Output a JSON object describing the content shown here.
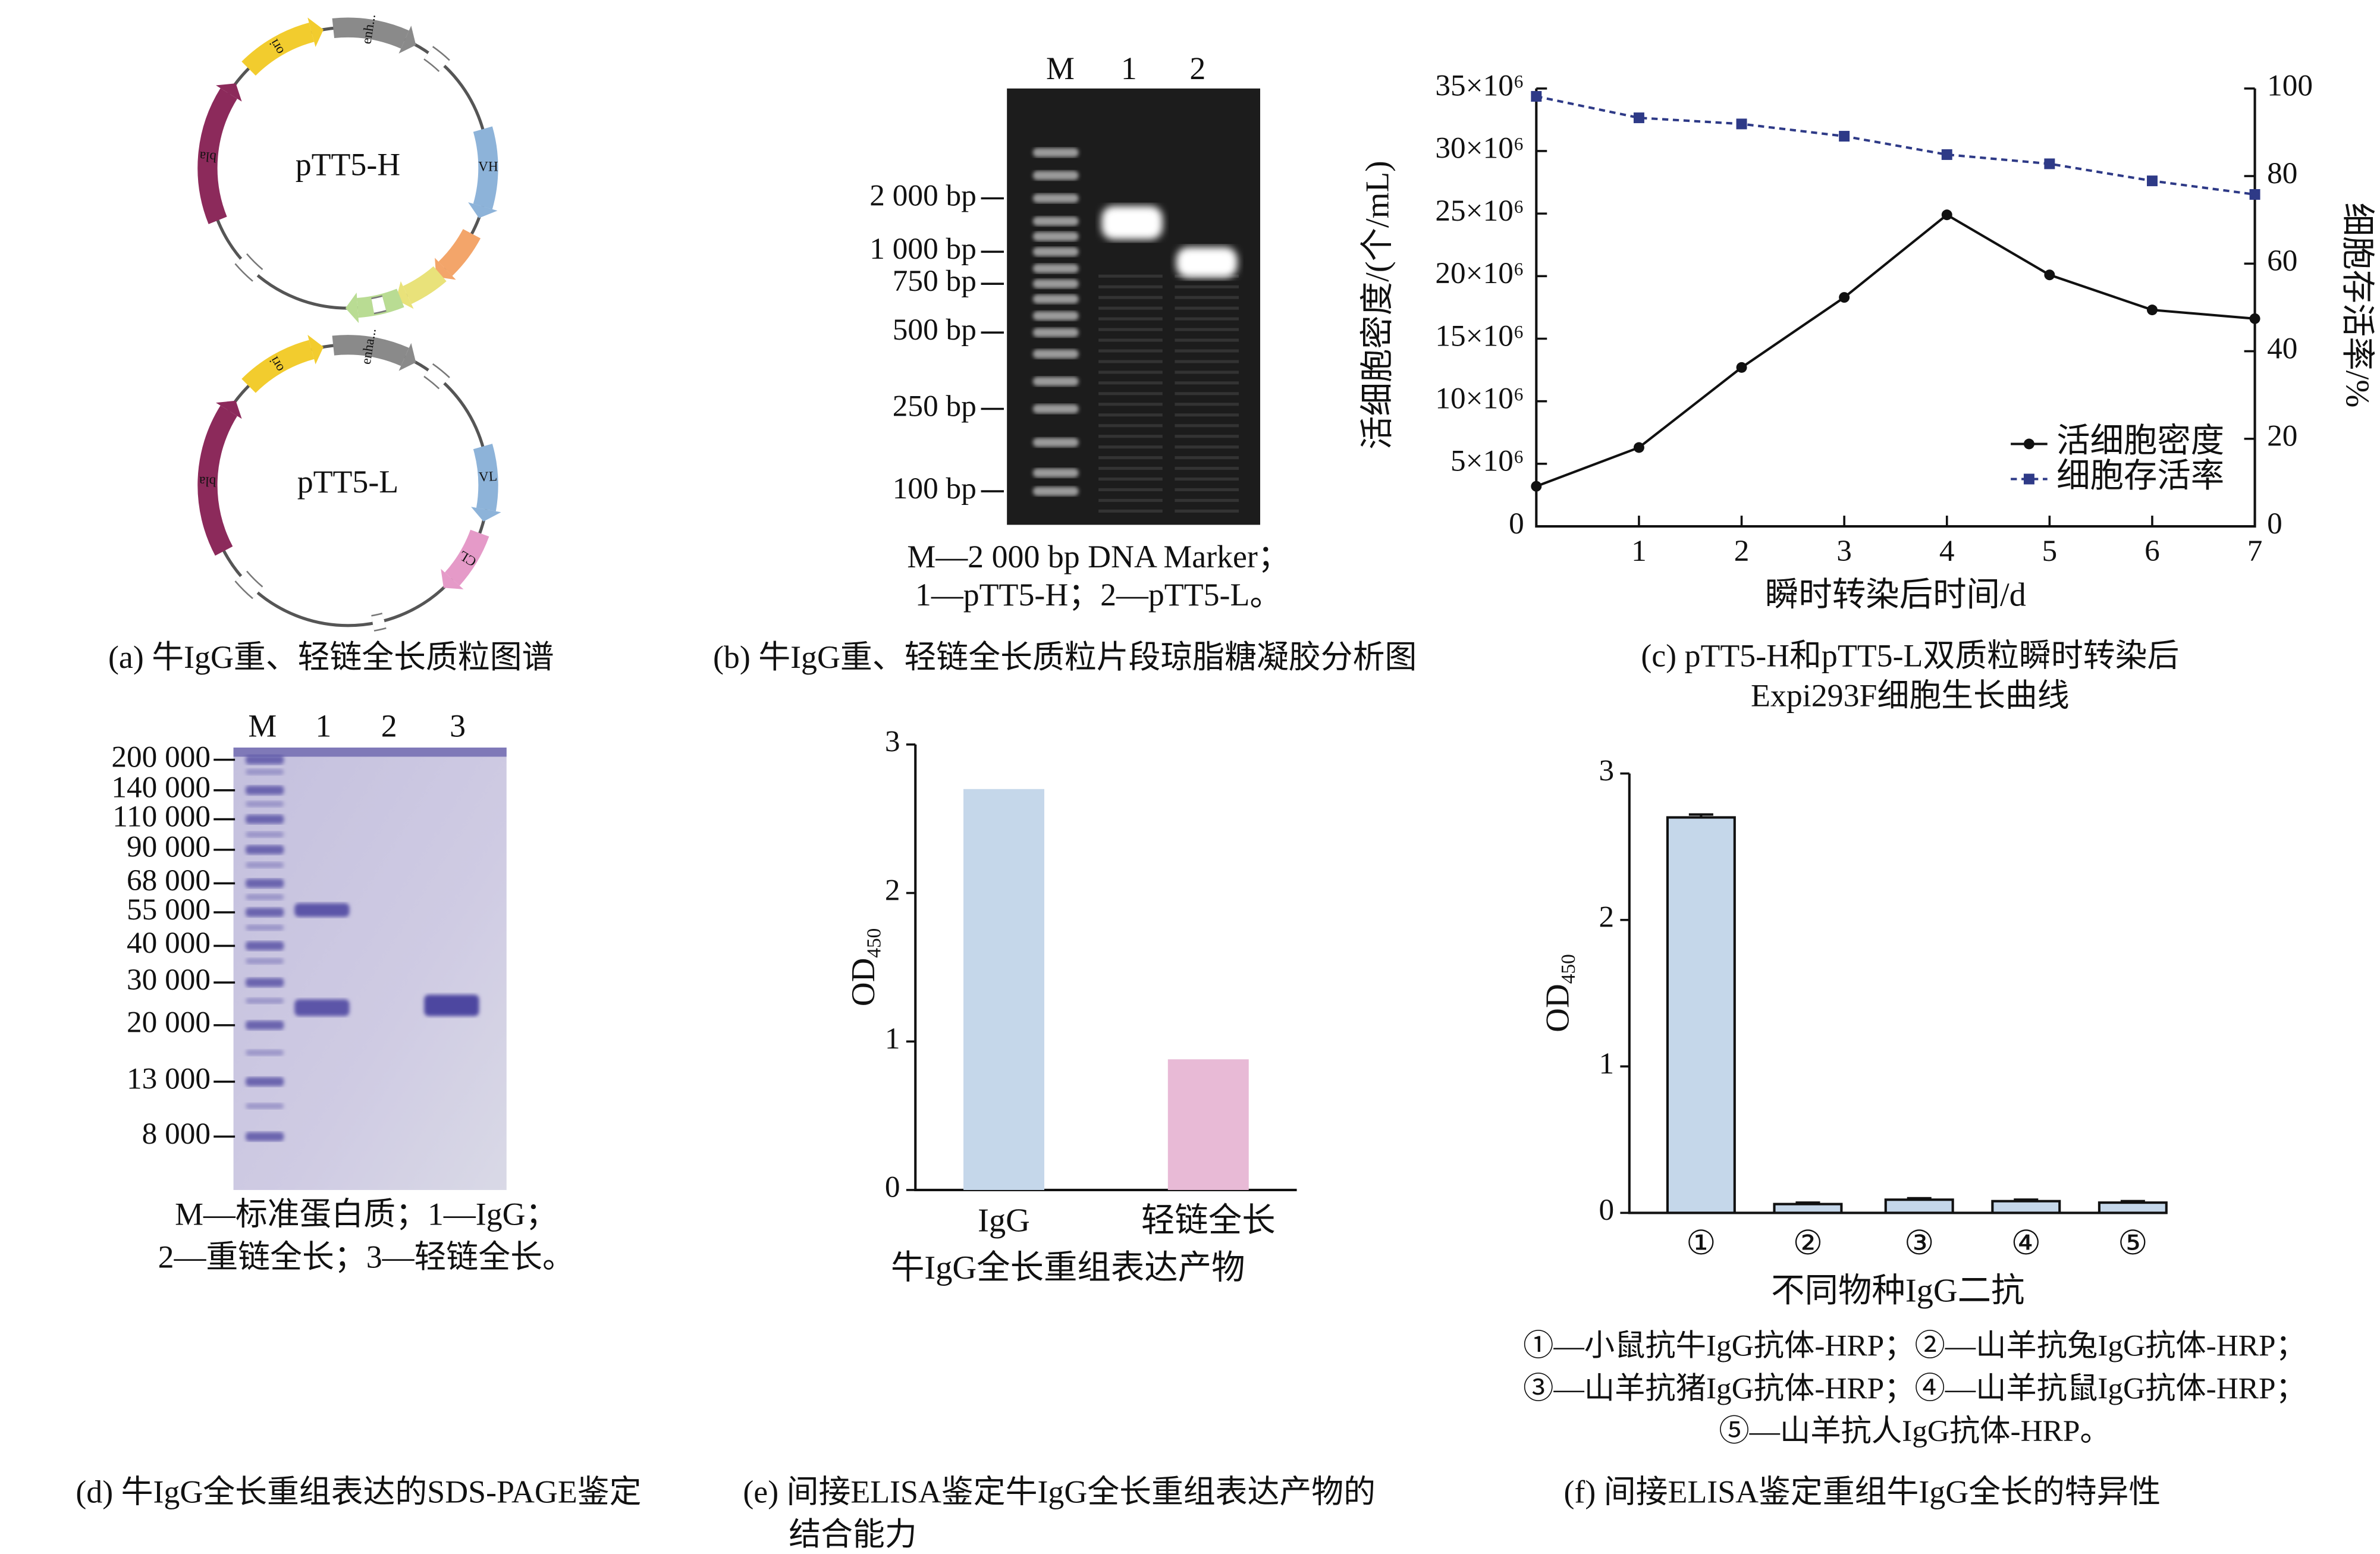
{
  "plasmids": {
    "caption": "(a) 牛IgG重、轻链全长质粒图谱",
    "maps": [
      {
        "name": "pTT5-H",
        "features": [
          "ori",
          "enh...",
          "VH",
          "bla"
        ]
      },
      {
        "name": "pTT5-L",
        "features": [
          "ori",
          "enha...",
          "VL",
          "CL",
          "bla"
        ]
      }
    ]
  },
  "dna_gel": {
    "lanes": [
      "M",
      "1",
      "2"
    ],
    "markers": [
      "2 000 bp",
      "1 000 bp",
      "750 bp",
      "500 bp",
      "250 bp",
      "100 bp"
    ],
    "legend": [
      "M—2 000 bp DNA Marker；",
      "1—pTT5-H；2—pTT5-L。"
    ],
    "caption": "(b) 牛IgG重、轻链全长质粒片段琼脂糖凝胶分析图"
  },
  "protein_gel": {
    "lanes": [
      "M",
      "1",
      "2",
      "3"
    ],
    "markers": [
      "200 000",
      "140 000",
      "110 000",
      "90 000",
      "68 000",
      "55 000",
      "40 000",
      "30 000",
      "20 000",
      "13 000",
      "8 000"
    ],
    "legend": [
      "M—标准蛋白质；1—IgG；",
      "2—重链全长；3—轻链全长。"
    ],
    "caption": "(d) 牛IgG全长重组表达的SDS-PAGE鉴定"
  },
  "chart_data": [
    {
      "type": "line",
      "caption": [
        "(c) pTT5-H和pTT5-L双质粒瞬时转染后",
        "Expi293F细胞生长曲线"
      ],
      "xlabel": "瞬时转染后时间/d",
      "ylabel": "活细胞密度/(个/mL)",
      "y2label": "细胞存活率/%",
      "x": [
        0,
        1,
        2,
        3,
        4,
        5,
        6,
        7
      ],
      "xlim": [
        0,
        7
      ],
      "xticks": [
        1,
        2,
        3,
        4,
        5,
        6,
        7
      ],
      "ylim": [
        0,
        35000000
      ],
      "yticks": [
        0,
        {
          "value": 5000000,
          "label": "5×10⁶"
        },
        {
          "value": 10000000,
          "label": "10×10⁶"
        },
        {
          "value": 15000000,
          "label": "15×10⁶"
        },
        {
          "value": 20000000,
          "label": "20×10⁶"
        },
        {
          "value": 25000000,
          "label": "25×10⁶"
        },
        {
          "value": 30000000,
          "label": "30×10⁶"
        },
        {
          "value": 35000000,
          "label": "35×10⁶"
        }
      ],
      "y2lim": [
        0,
        100
      ],
      "y2ticks": [
        0,
        20,
        40,
        60,
        80,
        100
      ],
      "legend": "lower right",
      "series": [
        {
          "name": "活细胞密度",
          "color": "#111111",
          "marker": "circle",
          "values": [
            3200000,
            6300000,
            12700000,
            18300000,
            24900000,
            20100000,
            17300000,
            16600000
          ]
        },
        {
          "name": "细胞存活率",
          "color": "#2e3a87",
          "marker": "square",
          "dashed": true,
          "axis": "y2",
          "values": [
            98.2,
            93.3,
            91.9,
            89.1,
            84.9,
            82.8,
            78.9,
            75.8
          ]
        }
      ]
    },
    {
      "type": "bar",
      "caption": [
        "(e) 间接ELISA鉴定牛IgG全长重组表达产物的",
        "结合能力"
      ],
      "ylabel": "OD",
      "ylabel_sub": "450",
      "xlabel": "牛IgG全长重组表达产物",
      "categories": [
        "IgG",
        "轻链全长"
      ],
      "values": [
        2.7,
        0.88
      ],
      "colors": [
        "#c5d7ea",
        "#e8bad6"
      ],
      "ylim": [
        0,
        3
      ],
      "yticks": [
        0,
        1,
        2,
        3
      ]
    },
    {
      "type": "bar",
      "caption": [
        "(f) 间接ELISA鉴定重组牛IgG全长的特异性"
      ],
      "ylabel": "OD",
      "ylabel_sub": "450",
      "xlabel": "不同物种IgG二抗",
      "categories": [
        "①",
        "②",
        "③",
        "④",
        "⑤"
      ],
      "values": [
        2.7,
        0.06,
        0.09,
        0.08,
        0.07
      ],
      "errors": [
        0.02,
        0.01,
        0.01,
        0.01,
        0.01
      ],
      "color": "#c5d7ea",
      "ylim": [
        0,
        3
      ],
      "yticks": [
        0,
        1,
        2,
        3
      ],
      "notes": [
        "①—小鼠抗牛IgG抗体-HRP；②—山羊抗兔IgG抗体-HRP；",
        "③—山羊抗猪IgG抗体-HRP；④—山羊抗鼠IgG抗体-HRP；",
        "⑤—山羊抗人IgG抗体-HRP。"
      ]
    }
  ]
}
